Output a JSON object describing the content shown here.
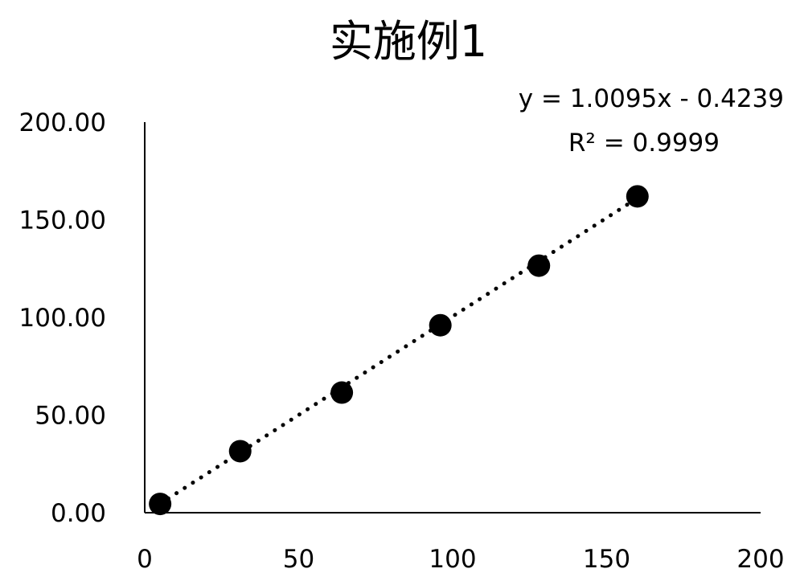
{
  "chart_data": {
    "type": "scatter",
    "title": "实施例1",
    "xlabel": "",
    "ylabel": "",
    "xlim": [
      0,
      200
    ],
    "ylim": [
      0,
      200
    ],
    "x_ticks": [
      "0",
      "50",
      "100",
      "150",
      "200"
    ],
    "y_ticks": [
      "0.00",
      "50.00",
      "100.00",
      "150.00",
      "200.00"
    ],
    "grid": false,
    "legend": "none",
    "series": [
      {
        "x": [
          5,
          31,
          64,
          96,
          128,
          160
        ],
        "y": [
          4.5,
          31.5,
          61.5,
          96.0,
          126.5,
          162.0
        ],
        "marker_color": "#000000"
      }
    ],
    "trendline": {
      "type": "linear",
      "style": "dotted",
      "slope": 1.0095,
      "intercept": -0.4239,
      "x_range": [
        5,
        160
      ],
      "equation": "y = 1.0095x - 0.4239",
      "r_squared": "0.9999",
      "r_squared_label": "R² = 0.9999"
    }
  }
}
